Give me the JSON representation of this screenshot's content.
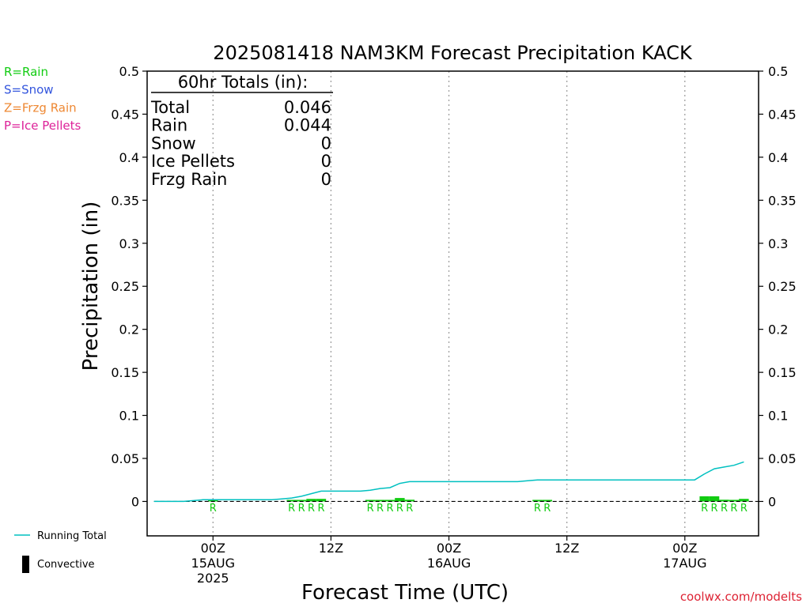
{
  "chart_data": {
    "type": "bar",
    "title": "2025081418 NAM3KM Forecast Precipitation KACK",
    "xlabel": "Forecast Time (UTC)",
    "ylabel": "Precipitation (in)",
    "ylim": [
      -0.04,
      0.5
    ],
    "y_ticks": [
      0,
      0.05,
      0.1,
      0.15,
      0.2,
      0.25,
      0.3,
      0.35,
      0.4,
      0.45,
      0.5
    ],
    "y_tick_labels": [
      "0",
      "0.05",
      "0.1",
      "0.15",
      "0.2",
      "0.25",
      "0.3",
      "0.35",
      "0.4",
      "0.45",
      "0.5"
    ],
    "x_unit": "hours from 2025-08-14 18Z",
    "xlim": [
      -0.7,
      61.5
    ],
    "x_ticks": [
      {
        "hour": 6,
        "lines": [
          "00Z",
          "15AUG",
          "2025"
        ]
      },
      {
        "hour": 18,
        "lines": [
          "12Z"
        ]
      },
      {
        "hour": 30,
        "lines": [
          "00Z",
          "16AUG"
        ]
      },
      {
        "hour": 42,
        "lines": [
          "12Z"
        ]
      },
      {
        "hour": 54,
        "lines": [
          "00Z",
          "17AUG"
        ]
      }
    ],
    "grid": "vertical dotted at tick hours",
    "legend": "left side",
    "ptype_legend": [
      {
        "text": "R=Rain",
        "color": "#11cc11"
      },
      {
        "text": "S=Snow",
        "color": "#3355dd"
      },
      {
        "text": "Z=Frzg Rain",
        "color": "#ee8833"
      },
      {
        "text": "P=Ice Pellets",
        "color": "#dd2299"
      }
    ],
    "series_legend": [
      {
        "text": "Running Total",
        "color": "#00c0c0",
        "kind": "line"
      },
      {
        "text": "Convective",
        "color": "#000000",
        "kind": "block"
      }
    ],
    "running_total": {
      "name": "Running Total",
      "color": "#00c0c0",
      "points": [
        [
          0,
          0
        ],
        [
          1,
          0
        ],
        [
          2,
          0
        ],
        [
          3,
          0
        ],
        [
          4,
          0.001
        ],
        [
          5,
          0.002
        ],
        [
          6,
          0.002
        ],
        [
          7,
          0.002
        ],
        [
          8,
          0.002
        ],
        [
          9,
          0.002
        ],
        [
          10,
          0.002
        ],
        [
          11,
          0.002
        ],
        [
          12,
          0.002
        ],
        [
          13,
          0.003
        ],
        [
          14,
          0.004
        ],
        [
          15,
          0.006
        ],
        [
          16,
          0.009
        ],
        [
          17,
          0.012
        ],
        [
          18,
          0.012
        ],
        [
          19,
          0.012
        ],
        [
          20,
          0.012
        ],
        [
          21,
          0.012
        ],
        [
          22,
          0.013
        ],
        [
          23,
          0.015
        ],
        [
          24,
          0.016
        ],
        [
          25,
          0.021
        ],
        [
          26,
          0.023
        ],
        [
          27,
          0.023
        ],
        [
          28,
          0.023
        ],
        [
          29,
          0.023
        ],
        [
          30,
          0.023
        ],
        [
          31,
          0.023
        ],
        [
          32,
          0.023
        ],
        [
          33,
          0.023
        ],
        [
          34,
          0.023
        ],
        [
          35,
          0.023
        ],
        [
          36,
          0.023
        ],
        [
          37,
          0.023
        ],
        [
          38,
          0.024
        ],
        [
          39,
          0.025
        ],
        [
          40,
          0.025
        ],
        [
          41,
          0.025
        ],
        [
          42,
          0.025
        ],
        [
          43,
          0.025
        ],
        [
          44,
          0.025
        ],
        [
          45,
          0.025
        ],
        [
          46,
          0.025
        ],
        [
          47,
          0.025
        ],
        [
          48,
          0.025
        ],
        [
          49,
          0.025
        ],
        [
          50,
          0.025
        ],
        [
          51,
          0.025
        ],
        [
          52,
          0.025
        ],
        [
          53,
          0.025
        ],
        [
          54,
          0.025
        ],
        [
          55,
          0.025
        ],
        [
          56,
          0.032
        ],
        [
          57,
          0.038
        ],
        [
          58,
          0.04
        ],
        [
          59,
          0.042
        ],
        [
          60,
          0.046
        ]
      ]
    },
    "hourly_precip": {
      "name": "Rain",
      "color": "#11cc11",
      "bars": [
        [
          6,
          0.0003
        ],
        [
          14,
          0.0005
        ],
        [
          15,
          0.001
        ],
        [
          16,
          0.003
        ],
        [
          17,
          0.003
        ],
        [
          22,
          0.0005
        ],
        [
          23,
          0.001
        ],
        [
          24,
          0.0005
        ],
        [
          25,
          0.004
        ],
        [
          26,
          0.002
        ],
        [
          39,
          0.001
        ],
        [
          40,
          0.001
        ],
        [
          56,
          0.006
        ],
        [
          57,
          0.006
        ],
        [
          58,
          0.002
        ],
        [
          59,
          0.001
        ],
        [
          60,
          0.003
        ]
      ]
    },
    "ptype_markers": [
      {
        "hour": 6,
        "label": "R"
      },
      {
        "hour": 14,
        "label": "R"
      },
      {
        "hour": 15,
        "label": "R"
      },
      {
        "hour": 16,
        "label": "R"
      },
      {
        "hour": 17,
        "label": "R"
      },
      {
        "hour": 22,
        "label": "R"
      },
      {
        "hour": 23,
        "label": "R"
      },
      {
        "hour": 24,
        "label": "R"
      },
      {
        "hour": 25,
        "label": "R"
      },
      {
        "hour": 26,
        "label": "R"
      },
      {
        "hour": 39,
        "label": "R"
      },
      {
        "hour": 40,
        "label": "R"
      },
      {
        "hour": 56,
        "label": "R"
      },
      {
        "hour": 57,
        "label": "R"
      },
      {
        "hour": 58,
        "label": "R"
      },
      {
        "hour": 59,
        "label": "R"
      },
      {
        "hour": 60,
        "label": "R"
      }
    ],
    "totals_box": {
      "heading": "60hr Totals (in):",
      "rows": [
        {
          "label": "Total",
          "value": "0.046"
        },
        {
          "label": "Rain",
          "value": "0.044"
        },
        {
          "label": "Snow",
          "value": "0"
        },
        {
          "label": "Ice Pellets",
          "value": "0"
        },
        {
          "label": "Frzg Rain",
          "value": "0"
        }
      ]
    },
    "credit": "coolwx.com/modelts",
    "credit_color": "#dd2233"
  }
}
